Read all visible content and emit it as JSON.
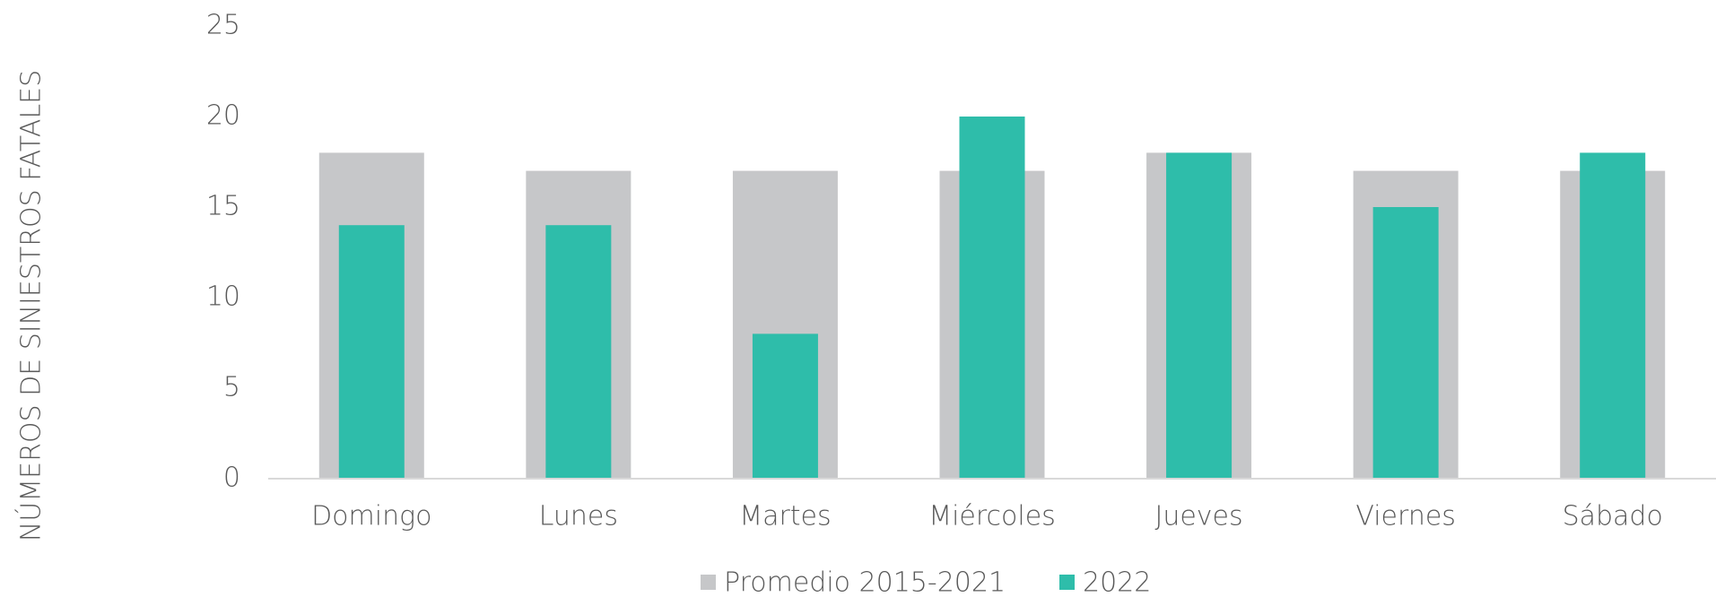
{
  "chart_data": {
    "type": "bar",
    "y_label": "NÚMEROS DE SINIESTROS FATALES",
    "categories": [
      "Domingo",
      "Lunes",
      "Martes",
      "Miércoles",
      "Jueves",
      "Viernes",
      "Sábado"
    ],
    "series": [
      {
        "name": "Promedio 2015-2021",
        "color": "#c6c7c9",
        "values": [
          18,
          17,
          17,
          17,
          18,
          17,
          17
        ]
      },
      {
        "name": "2022",
        "color": "#2ebdaa",
        "values": [
          14,
          14,
          8,
          20,
          18,
          15,
          18
        ]
      }
    ],
    "ylim": [
      0,
      25
    ],
    "yticks": [
      0,
      5,
      10,
      15,
      20,
      25
    ],
    "grid": false,
    "legend": "bottom"
  }
}
